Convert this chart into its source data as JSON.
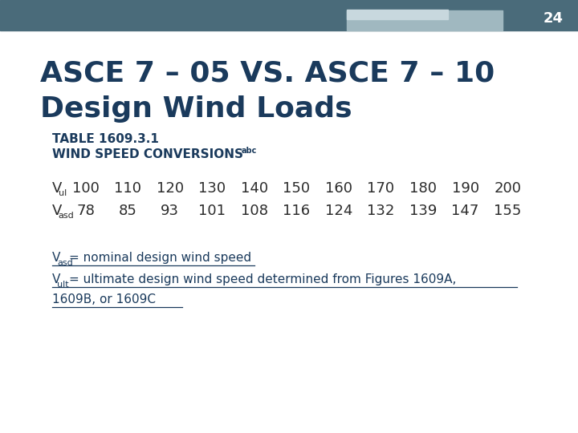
{
  "slide_number": "24",
  "bg_color": "#ffffff",
  "header_bar_color": "#4a6b7a",
  "header_bar2_color": "#a0b8c0",
  "header_bar3_color": "#c8d8de",
  "title_line1": "ASCE 7 – 05 VS. ASCE 7 – 10",
  "title_line2": "Design Wind Loads",
  "title_color": "#1a3a5c",
  "subtitle1": "TABLE 1609.3.1",
  "subtitle2": "WIND SPEED CONVERSIONS",
  "subtitle_superscript": "abc",
  "subtitle_color": "#1a3a5c",
  "vul_label": "V",
  "vul_sub": "ul",
  "vul_values": [
    100,
    110,
    120,
    130,
    140,
    150,
    160,
    170,
    180,
    190,
    200
  ],
  "vasd_label": "V",
  "vasd_sub": "asd",
  "vasd_values": [
    78,
    85,
    93,
    101,
    108,
    116,
    124,
    132,
    139,
    147,
    155
  ],
  "table_color": "#2c2c2c",
  "note1_main": "= nominal design wind speed",
  "note1_var": "V",
  "note1_sub": "asd",
  "note2_main": "= ultimate design wind speed determined from Figures 1609A,",
  "note2_line2": "1609B, or 1609C",
  "note2_var": "V",
  "note2_sub": "ult",
  "note_color": "#1a3a5c",
  "font_family": "DejaVu Sans"
}
